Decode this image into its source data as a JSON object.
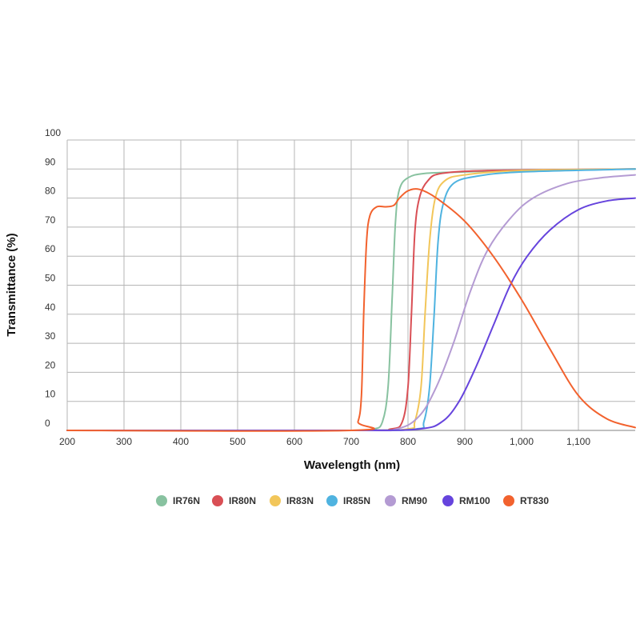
{
  "chart_data": {
    "type": "line",
    "xlabel": "Wavelength (nm)",
    "ylabel": "Transmittance (%)",
    "xlim": [
      200,
      1200
    ],
    "ylim": [
      0,
      100
    ],
    "x_ticks": [
      200,
      300,
      400,
      500,
      600,
      700,
      800,
      900,
      1000,
      1100
    ],
    "x_tick_labels": [
      "200",
      "300",
      "400",
      "500",
      "600",
      "700",
      "800",
      "900",
      "1,000",
      "1,100"
    ],
    "y_ticks": [
      0,
      10,
      20,
      30,
      40,
      50,
      60,
      70,
      80,
      90,
      100
    ],
    "y_tick_labels": [
      "0",
      "10",
      "20",
      "30",
      "40",
      "50",
      "60",
      "70",
      "80",
      "90",
      "100"
    ],
    "grid": true,
    "legend_position": "bottom",
    "series": [
      {
        "name": "IR76N",
        "color": "#88c2a0",
        "points": [
          [
            200,
            0
          ],
          [
            700,
            0
          ],
          [
            740,
            0.5
          ],
          [
            755,
            3
          ],
          [
            765,
            15
          ],
          [
            772,
            45
          ],
          [
            778,
            72
          ],
          [
            785,
            83
          ],
          [
            800,
            87
          ],
          [
            830,
            88.5
          ],
          [
            900,
            89
          ],
          [
            1000,
            89.5
          ],
          [
            1200,
            90
          ]
        ]
      },
      {
        "name": "IR80N",
        "color": "#d94f55",
        "points": [
          [
            200,
            0
          ],
          [
            700,
            0
          ],
          [
            770,
            0.5
          ],
          [
            790,
            3
          ],
          [
            800,
            15
          ],
          [
            806,
            40
          ],
          [
            812,
            68
          ],
          [
            820,
            80
          ],
          [
            835,
            86
          ],
          [
            860,
            88.5
          ],
          [
            950,
            89.5
          ],
          [
            1200,
            90
          ]
        ]
      },
      {
        "name": "IR83N",
        "color": "#f2c65a",
        "points": [
          [
            200,
            0
          ],
          [
            700,
            0
          ],
          [
            800,
            0.5
          ],
          [
            812,
            3
          ],
          [
            823,
            15
          ],
          [
            830,
            40
          ],
          [
            838,
            65
          ],
          [
            848,
            80
          ],
          [
            865,
            86
          ],
          [
            900,
            88
          ],
          [
            1000,
            89.5
          ],
          [
            1200,
            90
          ]
        ]
      },
      {
        "name": "IR85N",
        "color": "#4fb3e0",
        "points": [
          [
            200,
            0
          ],
          [
            700,
            0
          ],
          [
            815,
            0.5
          ],
          [
            828,
            3
          ],
          [
            838,
            15
          ],
          [
            846,
            40
          ],
          [
            853,
            65
          ],
          [
            862,
            78
          ],
          [
            880,
            85
          ],
          [
            920,
            87.5
          ],
          [
            1000,
            89
          ],
          [
            1200,
            90
          ]
        ]
      },
      {
        "name": "RM90",
        "color": "#b49bd3",
        "points": [
          [
            200,
            0
          ],
          [
            700,
            0
          ],
          [
            780,
            0.5
          ],
          [
            820,
            5
          ],
          [
            850,
            15
          ],
          [
            880,
            30
          ],
          [
            910,
            48
          ],
          [
            940,
            62
          ],
          [
            980,
            73
          ],
          [
            1020,
            80
          ],
          [
            1080,
            85
          ],
          [
            1140,
            87
          ],
          [
            1200,
            88
          ]
        ]
      },
      {
        "name": "RM100",
        "color": "#6644dd",
        "points": [
          [
            200,
            0
          ],
          [
            700,
            0
          ],
          [
            820,
            0.5
          ],
          [
            860,
            3
          ],
          [
            890,
            10
          ],
          [
            920,
            22
          ],
          [
            950,
            36
          ],
          [
            980,
            50
          ],
          [
            1010,
            60
          ],
          [
            1050,
            69
          ],
          [
            1100,
            76
          ],
          [
            1150,
            79
          ],
          [
            1200,
            80
          ]
        ]
      },
      {
        "name": "RT830",
        "color": "#f2622e",
        "points": [
          [
            200,
            0
          ],
          [
            700,
            0
          ],
          [
            712,
            3
          ],
          [
            718,
            12
          ],
          [
            722,
            40
          ],
          [
            727,
            65
          ],
          [
            733,
            74
          ],
          [
            745,
            77
          ],
          [
            760,
            77
          ],
          [
            775,
            77.5
          ],
          [
            785,
            80
          ],
          [
            800,
            82.5
          ],
          [
            820,
            83
          ],
          [
            850,
            80
          ],
          [
            900,
            72
          ],
          [
            950,
            60
          ],
          [
            1000,
            45
          ],
          [
            1050,
            28
          ],
          [
            1100,
            12
          ],
          [
            1150,
            4
          ],
          [
            1200,
            1
          ]
        ]
      }
    ]
  }
}
